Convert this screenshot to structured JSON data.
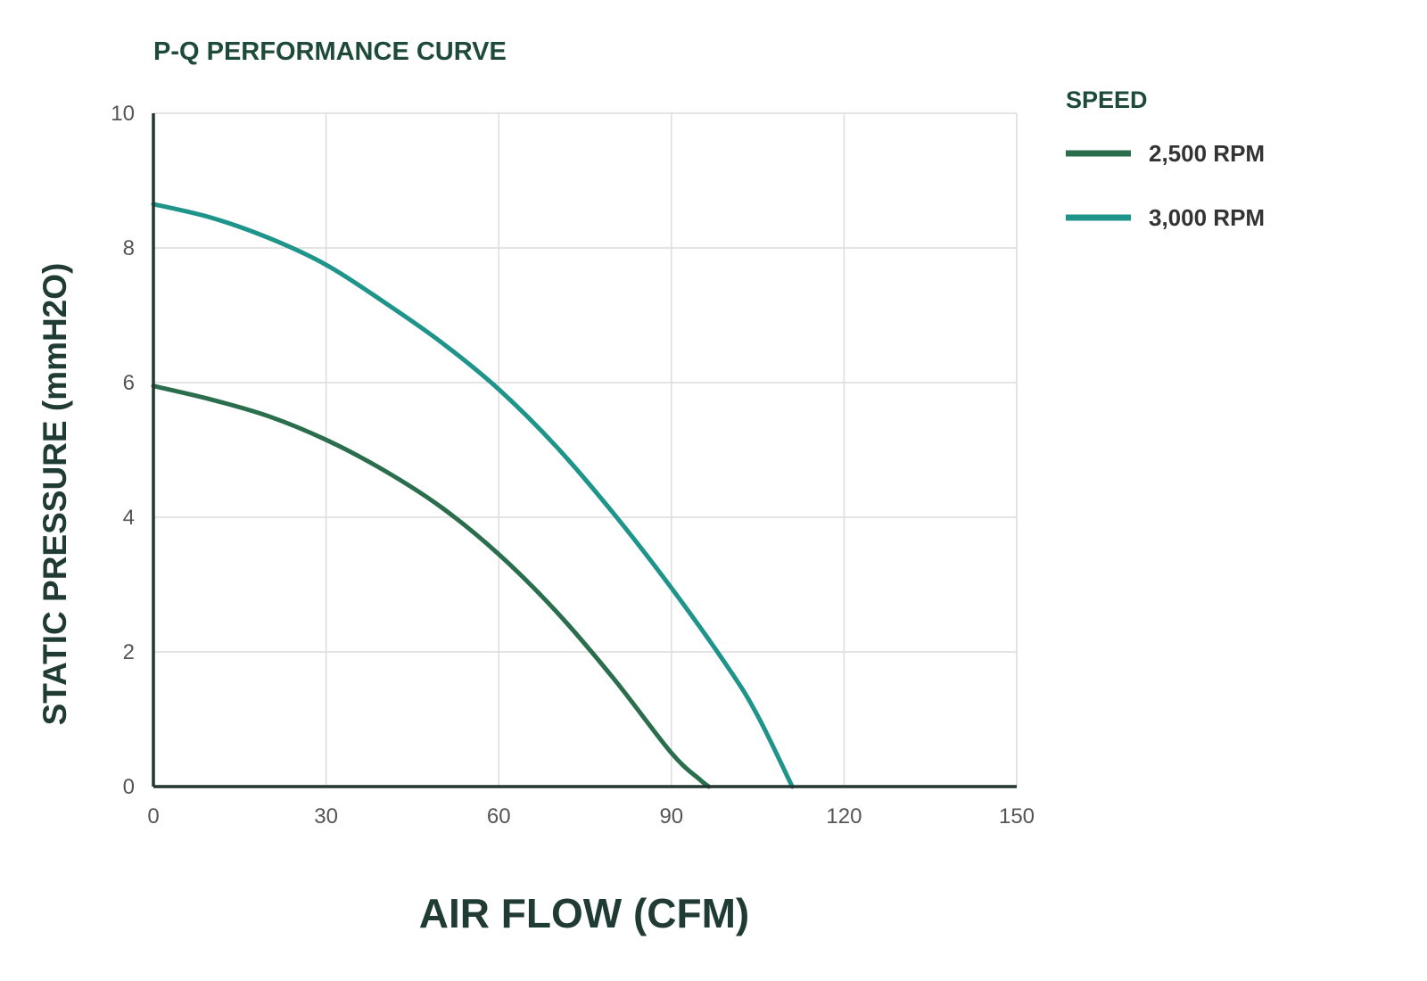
{
  "chart_data": {
    "type": "line",
    "title": "P-Q PERFORMANCE CURVE",
    "xlabel": "AIR FLOW (CFM)",
    "ylabel": "STATIC PRESSURE (mmH2O)",
    "xlim": [
      0,
      150
    ],
    "ylim": [
      0,
      10
    ],
    "xticks": [
      "0",
      "30",
      "60",
      "90",
      "120",
      "150"
    ],
    "yticks": [
      "0",
      "2",
      "4",
      "6",
      "8",
      "10"
    ],
    "grid": true,
    "legend_title": "SPEED",
    "legend_position": "top-right, outside plot",
    "series": [
      {
        "name": "2,500 RPM",
        "color": "#2a6e4e",
        "x": [
          0,
          10,
          20,
          30,
          40,
          50,
          60,
          70,
          80,
          90,
          95,
          96.5
        ],
        "y": [
          5.95,
          5.75,
          5.5,
          5.15,
          4.7,
          4.15,
          3.45,
          2.6,
          1.6,
          0.5,
          0.1,
          0
        ]
      },
      {
        "name": "3,000 RPM",
        "color": "#1f948a",
        "x": [
          0,
          10,
          20,
          30,
          40,
          50,
          60,
          70,
          80,
          90,
          100,
          105,
          111
        ],
        "y": [
          8.65,
          8.45,
          8.15,
          7.75,
          7.2,
          6.6,
          5.9,
          5.05,
          4.05,
          2.95,
          1.75,
          1.05,
          0
        ]
      }
    ]
  }
}
